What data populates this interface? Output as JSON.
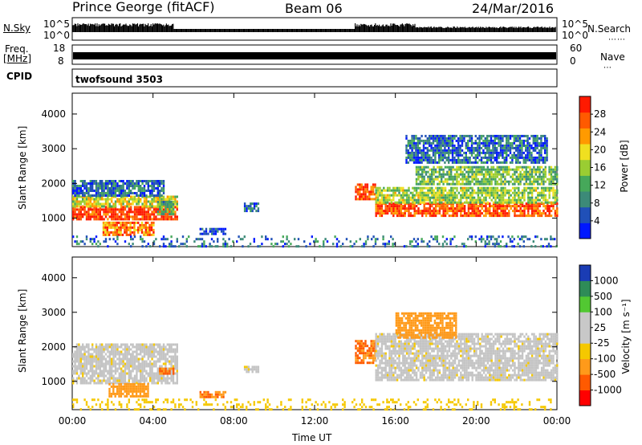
{
  "header": {
    "station": "Prince George (fitACF)",
    "beam": "Beam 06",
    "date": "24/Mar/2016"
  },
  "side_labels": {
    "nsky": "N.Sky",
    "freq_line1": "Freq.",
    "freq_line2": "[MHz]",
    "cpid": "CPID",
    "nsearch": "N.Search",
    "nave": "Nave"
  },
  "noise_panel": {
    "left_ticks": [
      "10^5",
      "10^0"
    ],
    "right_ticks": [
      "10^5",
      "10^0"
    ]
  },
  "freq_panel": {
    "left_ticks": [
      "18",
      "8"
    ],
    "right_ticks": [
      "60",
      "0"
    ]
  },
  "cpid_panel": {
    "text": "twofsound 3503"
  },
  "colors": {
    "power_scale": [
      "#0018ff",
      "#2050b8",
      "#3c8a78",
      "#46a85a",
      "#9acd32",
      "#f0e020",
      "#ff9a00",
      "#ff5a00",
      "#ff1a00"
    ],
    "velocity_scale": [
      "#ff0000",
      "#ff5a00",
      "#ff9a1a",
      "#f5c800",
      "#c8c8c8",
      "#c8c8c8",
      "#52c832",
      "#2e8c57",
      "#1a3cb4"
    ],
    "gray": "#c4c4c4"
  },
  "power_colorbar": {
    "label": "Power [dB]",
    "ticks": [
      "28",
      "24",
      "20",
      "16",
      "12",
      "8",
      "4"
    ]
  },
  "velocity_colorbar": {
    "label": "Velocity [m s⁻¹]",
    "ticks": [
      "1000",
      "500",
      "100",
      "25",
      "-25",
      "-100",
      "-500",
      "-1000"
    ]
  },
  "x_axis": {
    "label": "Time UT",
    "ticks": [
      "00:00",
      "04:00",
      "08:00",
      "12:00",
      "16:00",
      "20:00",
      "00:00"
    ]
  },
  "chart_data": [
    {
      "type": "heatmap",
      "title": "Power",
      "ylabel": "Slant Range [km]",
      "xlabel": "",
      "xlim": [
        0,
        24
      ],
      "ylim": [
        180,
        4600
      ],
      "yticks": [
        1000,
        2000,
        3000,
        4000
      ],
      "colorbar": {
        "label": "Power [dB]",
        "range": [
          2,
          30
        ]
      },
      "regions": [
        {
          "t": [
            0.0,
            5.2
          ],
          "r": [
            950,
            1350
          ],
          "value": 28
        },
        {
          "t": [
            0.0,
            5.2
          ],
          "r": [
            1350,
            1650
          ],
          "value": 18
        },
        {
          "t": [
            0.0,
            4.5
          ],
          "r": [
            1650,
            2100
          ],
          "value": 8
        },
        {
          "t": [
            1.5,
            4.0
          ],
          "r": [
            550,
            900
          ],
          "value": 24
        },
        {
          "t": [
            4.2,
            5.0
          ],
          "r": [
            1150,
            1500
          ],
          "value": 12
        },
        {
          "t": [
            6.3,
            7.6
          ],
          "r": [
            560,
            720
          ],
          "value": 6
        },
        {
          "t": [
            8.5,
            9.2
          ],
          "r": [
            1200,
            1450
          ],
          "value": 8
        },
        {
          "t": [
            14.0,
            15.0
          ],
          "r": [
            1550,
            2000
          ],
          "value": 26
        },
        {
          "t": [
            15.0,
            24.0
          ],
          "r": [
            1050,
            1450
          ],
          "value": 26
        },
        {
          "t": [
            15.0,
            24.0
          ],
          "r": [
            1450,
            1900
          ],
          "value": 16
        },
        {
          "t": [
            17.0,
            24.0
          ],
          "r": [
            2000,
            2500
          ],
          "value": 14
        },
        {
          "t": [
            16.5,
            23.5
          ],
          "r": [
            2600,
            3400
          ],
          "value": 8
        },
        {
          "t": [
            0.0,
            24.0
          ],
          "r": [
            200,
            500
          ],
          "value": 8
        }
      ]
    },
    {
      "type": "heatmap",
      "title": "Velocity",
      "ylabel": "Slant Range [km]",
      "xlabel": "Time UT",
      "xlim": [
        0,
        24
      ],
      "ylim": [
        180,
        4600
      ],
      "yticks": [
        1000,
        2000,
        3000,
        4000
      ],
      "colorbar": {
        "label": "Velocity [m s⁻¹]",
        "levels": [
          -1000,
          -500,
          -100,
          -25,
          25,
          100,
          500,
          1000
        ]
      },
      "regions": [
        {
          "t": [
            0.0,
            5.2
          ],
          "r": [
            950,
            2100
          ],
          "value": 0
        },
        {
          "t": [
            1.8,
            3.8
          ],
          "r": [
            550,
            950
          ],
          "value": -300
        },
        {
          "t": [
            4.3,
            5.0
          ],
          "r": [
            1200,
            1400
          ],
          "value": -500
        },
        {
          "t": [
            6.3,
            7.6
          ],
          "r": [
            560,
            720
          ],
          "value": -500
        },
        {
          "t": [
            8.5,
            9.2
          ],
          "r": [
            1300,
            1450
          ],
          "value": 0
        },
        {
          "t": [
            14.0,
            15.0
          ],
          "r": [
            1550,
            2200
          ],
          "value": -500
        },
        {
          "t": [
            15.0,
            24.0
          ],
          "r": [
            1050,
            2400
          ],
          "value": 0
        },
        {
          "t": [
            16.0,
            19.0
          ],
          "r": [
            2300,
            3000
          ],
          "value": -300
        },
        {
          "t": [
            0.0,
            24.0
          ],
          "r": [
            200,
            500
          ],
          "value": -60
        }
      ]
    }
  ]
}
